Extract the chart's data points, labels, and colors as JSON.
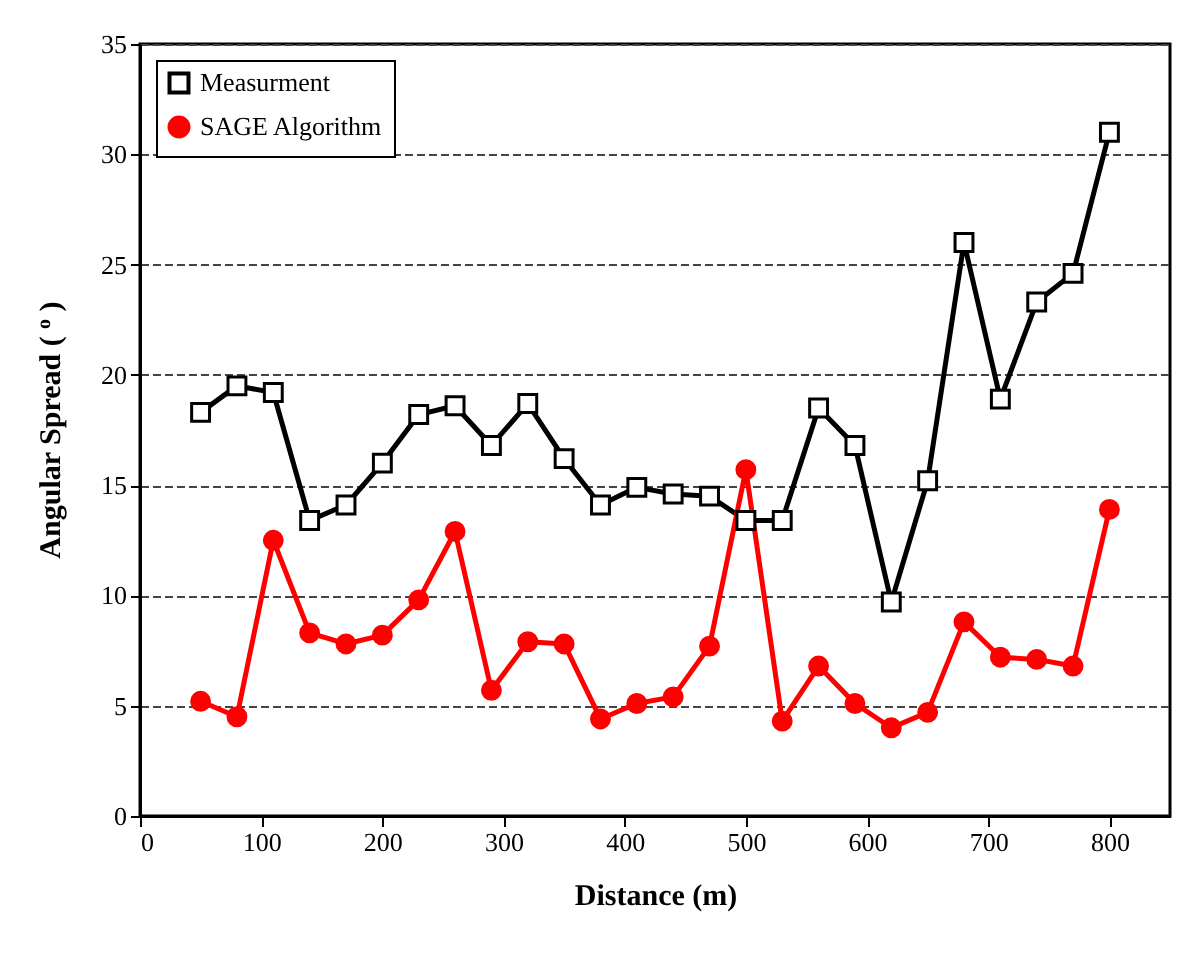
{
  "chart_data": {
    "type": "line",
    "xlabel": "Distance (m)",
    "ylabel": "Angular Spread ( $^{o}$ )",
    "x": [
      50,
      80,
      110,
      140,
      170,
      200,
      230,
      260,
      290,
      320,
      350,
      380,
      410,
      440,
      470,
      500,
      530,
      560,
      590,
      620,
      650,
      680,
      710,
      740,
      770,
      800
    ],
    "series": [
      {
        "name": "Measurment",
        "color": "#000000",
        "marker": "square",
        "values": [
          18.3,
          19.5,
          19.2,
          13.4,
          14.1,
          16.0,
          18.2,
          18.6,
          16.8,
          18.7,
          16.2,
          14.1,
          14.9,
          14.6,
          14.5,
          13.4,
          13.4,
          18.5,
          16.8,
          9.7,
          15.2,
          26.0,
          18.9,
          23.3,
          24.6,
          31.0
        ]
      },
      {
        "name": "SAGE Algorithm",
        "color": "#ff0000",
        "marker": "circle",
        "values": [
          5.2,
          4.5,
          12.5,
          8.3,
          7.8,
          8.2,
          9.8,
          12.9,
          5.7,
          7.9,
          7.8,
          4.4,
          5.1,
          5.4,
          7.7,
          15.7,
          4.3,
          6.8,
          5.1,
          4.0,
          4.7,
          8.8,
          7.2,
          7.1,
          6.8,
          13.9
        ]
      }
    ],
    "xlim": [
      0,
      850
    ],
    "xticks": [
      0,
      100,
      200,
      300,
      400,
      500,
      600,
      700,
      800
    ],
    "ylim": [
      0,
      35
    ],
    "yticks": [
      0,
      5,
      10,
      15,
      20,
      25,
      30,
      35
    ],
    "grid": "y",
    "legend": "top left",
    "line_style": "solid"
  }
}
